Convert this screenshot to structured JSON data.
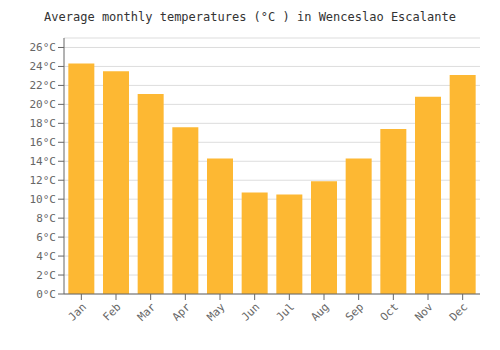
{
  "chart_data": {
    "type": "bar",
    "title": "Average monthly temperatures (°C ) in Wenceslao Escalante",
    "categories": [
      "Jan",
      "Feb",
      "Mar",
      "Apr",
      "May",
      "Jun",
      "Jul",
      "Aug",
      "Sep",
      "Oct",
      "Nov",
      "Dec"
    ],
    "values": [
      24.3,
      23.5,
      21.1,
      17.6,
      14.3,
      10.7,
      10.5,
      11.9,
      14.3,
      17.4,
      20.8,
      23.1
    ],
    "color": "#FDB833",
    "ylim": [
      0,
      27
    ],
    "yticks": [
      {
        "value": 0,
        "label": "0°C"
      },
      {
        "value": 2,
        "label": "2°C"
      },
      {
        "value": 4,
        "label": "4°C"
      },
      {
        "value": 6,
        "label": "6°C"
      },
      {
        "value": 8,
        "label": "8°C"
      },
      {
        "value": 10,
        "label": "10°C"
      },
      {
        "value": 12,
        "label": "12°C"
      },
      {
        "value": 14,
        "label": "14°C"
      },
      {
        "value": 16,
        "label": "16°C"
      },
      {
        "value": 18,
        "label": "18°C"
      },
      {
        "value": 20,
        "label": "20°C"
      },
      {
        "value": 22,
        "label": "22°C"
      },
      {
        "value": 24,
        "label": "24°C"
      },
      {
        "value": 26,
        "label": "26°C"
      }
    ],
    "grid": true
  }
}
